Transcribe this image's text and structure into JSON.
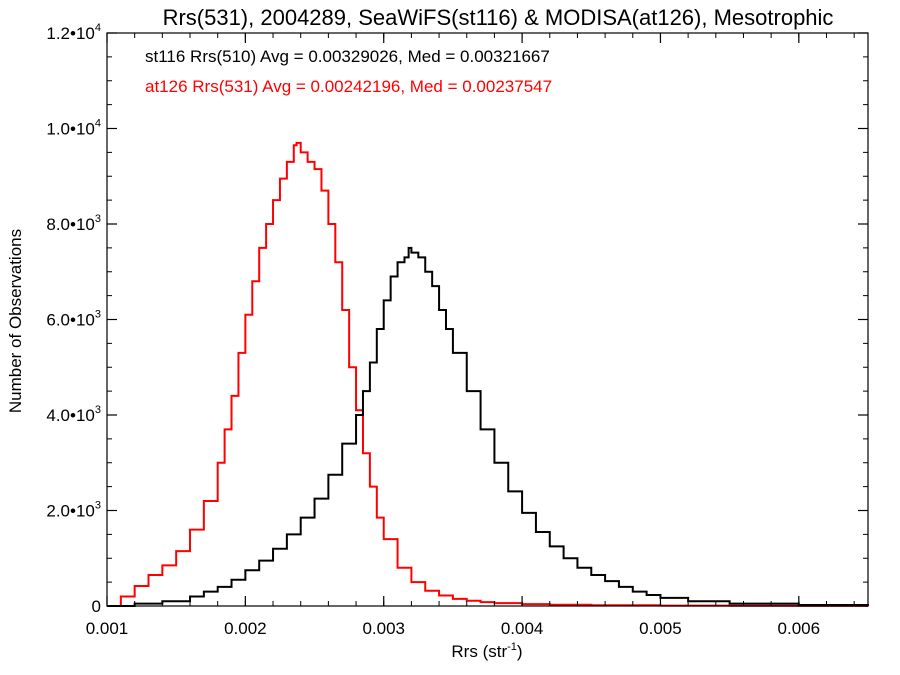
{
  "chart_data": {
    "type": "line",
    "title": "Rrs(531), 2004289, SeaWiFS(st116) & MODISA(at126), Mesotrophic",
    "xlabel": "Rrs (str",
    "xlabel_sup": "-1",
    "xlabel_end": ")",
    "ylabel": "Number of Observations",
    "xlim": [
      0.001,
      0.0065
    ],
    "ylim": [
      0,
      12000
    ],
    "grid": false,
    "x_ticks": [
      {
        "value": 0.001,
        "label": "0.001"
      },
      {
        "value": 0.002,
        "label": "0.002"
      },
      {
        "value": 0.003,
        "label": "0.003"
      },
      {
        "value": 0.004,
        "label": "0.004"
      },
      {
        "value": 0.005,
        "label": "0.005"
      },
      {
        "value": 0.006,
        "label": "0.006"
      }
    ],
    "y_ticks": [
      {
        "value": 0,
        "label": "0",
        "exp": ""
      },
      {
        "value": 2000,
        "label": "2.0•10",
        "exp": "3"
      },
      {
        "value": 4000,
        "label": "4.0•10",
        "exp": "3"
      },
      {
        "value": 6000,
        "label": "6.0•10",
        "exp": "3"
      },
      {
        "value": 8000,
        "label": "8.0•10",
        "exp": "3"
      },
      {
        "value": 10000,
        "label": "1.0•10",
        "exp": "4"
      },
      {
        "value": 12000,
        "label": "1.2•10",
        "exp": "4"
      }
    ],
    "annotations": [
      {
        "text": "st116 Rrs(510) Avg = 0.00329026, Med = 0.00321667",
        "color": "#000000"
      },
      {
        "text": "at126 Rrs(531) Avg = 0.00242196, Med = 0.00237547",
        "color": "#ff0000"
      }
    ],
    "series": [
      {
        "color": "#ff0000",
        "x": [
          0.001,
          0.0011,
          0.0012,
          0.0013,
          0.0014,
          0.0015,
          0.0016,
          0.0017,
          0.0018,
          0.00185,
          0.0019,
          0.00195,
          0.002,
          0.00205,
          0.0021,
          0.00215,
          0.0022,
          0.00225,
          0.0023,
          0.00235,
          0.00237,
          0.0024,
          0.00245,
          0.0025,
          0.00255,
          0.0026,
          0.00265,
          0.0027,
          0.00275,
          0.0028,
          0.00285,
          0.0029,
          0.00295,
          0.003,
          0.0031,
          0.0032,
          0.0033,
          0.0034,
          0.0035,
          0.0036,
          0.0037,
          0.0038,
          0.004,
          0.0042,
          0.0045,
          0.005,
          0.0055,
          0.006,
          0.0065
        ],
        "y": [
          0,
          200,
          420,
          650,
          850,
          1150,
          1600,
          2200,
          3000,
          3700,
          4400,
          5300,
          6100,
          6800,
          7500,
          8000,
          8500,
          8950,
          9300,
          9650,
          9700,
          9500,
          9300,
          9150,
          8700,
          8000,
          7200,
          6200,
          5000,
          4100,
          3200,
          2500,
          1850,
          1400,
          800,
          500,
          320,
          220,
          150,
          110,
          80,
          60,
          40,
          25,
          15,
          8,
          5,
          3,
          2
        ]
      },
      {
        "color": "#000000",
        "x": [
          0.001,
          0.0012,
          0.0014,
          0.0016,
          0.0017,
          0.0018,
          0.0019,
          0.002,
          0.0021,
          0.0022,
          0.0023,
          0.0024,
          0.0025,
          0.0026,
          0.0027,
          0.0028,
          0.00285,
          0.0029,
          0.00295,
          0.003,
          0.00305,
          0.0031,
          0.00315,
          0.00318,
          0.0032,
          0.00325,
          0.0033,
          0.00335,
          0.0034,
          0.00345,
          0.0035,
          0.0036,
          0.0037,
          0.0038,
          0.0039,
          0.004,
          0.0041,
          0.0042,
          0.0043,
          0.0044,
          0.0045,
          0.0046,
          0.0047,
          0.0048,
          0.0049,
          0.005,
          0.0052,
          0.0055,
          0.006,
          0.0065
        ],
        "y": [
          0,
          50,
          100,
          200,
          300,
          400,
          550,
          750,
          950,
          1200,
          1500,
          1850,
          2250,
          2750,
          3400,
          4000,
          4500,
          5100,
          5800,
          6400,
          6900,
          7200,
          7300,
          7500,
          7400,
          7300,
          7000,
          6700,
          6200,
          5800,
          5300,
          4500,
          3700,
          3000,
          2400,
          1950,
          1550,
          1250,
          1000,
          800,
          650,
          520,
          400,
          300,
          230,
          170,
          100,
          50,
          20,
          10
        ]
      }
    ]
  }
}
